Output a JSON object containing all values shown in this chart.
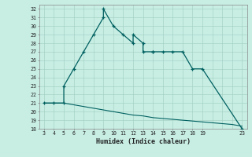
{
  "xlabel": "Humidex (Indice chaleur)",
  "bg_color": "#c8eee4",
  "line_color": "#006060",
  "grid_color": "#a0ccc0",
  "humidex_x": [
    3,
    4,
    5,
    5,
    6,
    7,
    8,
    9,
    9,
    10,
    11,
    12,
    12,
    13,
    13,
    14,
    14,
    15,
    16,
    17,
    18,
    19,
    23
  ],
  "humidex_y": [
    21,
    21,
    21,
    23,
    25,
    27,
    29,
    31,
    32,
    30,
    29,
    28,
    29,
    28,
    27,
    27,
    27,
    27,
    27,
    27,
    25,
    25,
    18
  ],
  "dew_x": [
    3,
    4,
    5,
    6,
    7,
    8,
    9,
    10,
    11,
    12,
    13,
    14,
    15,
    16,
    17,
    18,
    19,
    20,
    21,
    22,
    23
  ],
  "dew_y": [
    21,
    21,
    21,
    20.8,
    20.6,
    20.4,
    20.2,
    20.0,
    19.8,
    19.6,
    19.5,
    19.3,
    19.2,
    19.1,
    19.0,
    18.9,
    18.8,
    18.7,
    18.6,
    18.5,
    18.3
  ],
  "ylim": [
    18,
    32.5
  ],
  "yticks": [
    18,
    19,
    20,
    21,
    22,
    23,
    24,
    25,
    26,
    27,
    28,
    29,
    30,
    31,
    32
  ],
  "xticks": [
    3,
    4,
    5,
    6,
    7,
    8,
    9,
    10,
    11,
    12,
    13,
    14,
    15,
    16,
    17,
    18,
    19,
    23
  ],
  "xlim": [
    2.5,
    23.5
  ]
}
